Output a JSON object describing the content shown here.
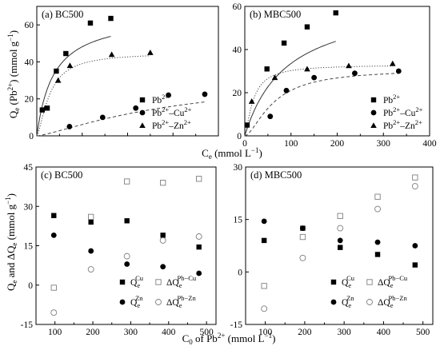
{
  "chart_data": [
    {
      "type": "scatter",
      "panel_label": "(a) BC500",
      "ylabel": "Qe (Pb2+) (mmol g-1)",
      "ylabel_parts": {
        "base": "Q",
        "base_sub": "e",
        "open": " (Pb",
        "sup": "2+",
        "close": ") (mmol g",
        "unit_sup": "−1",
        "end": ")"
      },
      "xlim": [
        0,
        400
      ],
      "ylim": [
        0,
        70
      ],
      "xticks": [
        0,
        100,
        200,
        300,
        400
      ],
      "yticks": [
        0,
        20,
        40,
        60
      ],
      "xtick_labels": [
        "",
        "",
        "",
        "",
        ""
      ],
      "ytick_labels": [
        "0",
        "20",
        "40",
        "60"
      ],
      "legend_position": "bottom-right",
      "series": [
        {
          "name": "Pb2+",
          "legend_parts": [
            "Pb",
            "2+",
            ""
          ],
          "marker": "square",
          "fit": "solid",
          "fit_model": {
            "qmax": 66,
            "k": 0.027,
            "n": 1
          },
          "x": [
            12,
            23,
            43,
            64,
            118,
            163
          ],
          "y": [
            14,
            15,
            35,
            44.5,
            61,
            63.5
          ]
        },
        {
          "name": "Pb2+–Cu2+",
          "legend_parts": [
            "Pb",
            "2+",
            "–Cu",
            "2+"
          ],
          "marker": "circle",
          "fit": "dashed",
          "fit_model": {
            "qmax": 33,
            "k": 0.0032,
            "n": 1.3
          },
          "x": [
            72,
            145,
            218,
            290,
            370
          ],
          "y": [
            5,
            10,
            15,
            22,
            22.5
          ]
        },
        {
          "name": "Pb2+–Zn2+",
          "legend_parts": [
            "Pb",
            "2+",
            "–Zn",
            "2+"
          ],
          "marker": "triangle",
          "fit": "dotted",
          "fit_model": {
            "qmax": 45,
            "k": 0.035,
            "n": 1.5
          },
          "x": [
            18,
            47,
            73,
            165,
            250
          ],
          "y": [
            15,
            30,
            38,
            44,
            45
          ]
        }
      ]
    },
    {
      "type": "scatter",
      "panel_label": "(b) MBC500",
      "xlim": [
        0,
        400
      ],
      "ylim": [
        0,
        60
      ],
      "xticks": [
        0,
        100,
        200,
        300,
        400
      ],
      "yticks": [
        0,
        20,
        40,
        60
      ],
      "xtick_labels": [
        "0",
        "100",
        "200",
        "300",
        "400"
      ],
      "ytick_labels": [
        "0",
        "20",
        "40",
        "60"
      ],
      "legend_position": "bottom-right",
      "series": [
        {
          "name": "Pb2+",
          "legend_parts": [
            "Pb",
            "2+",
            ""
          ],
          "marker": "square",
          "fit": "solid",
          "fit_model": {
            "qmax": 64,
            "k": 0.011,
            "n": 1
          },
          "x": [
            5,
            48,
            85,
            135,
            197
          ],
          "y": [
            5,
            31,
            43,
            50.5,
            57
          ]
        },
        {
          "name": "Pb2+–Cu2+",
          "legend_parts": [
            "Pb",
            "2+",
            "–Cu",
            "2+"
          ],
          "marker": "circle",
          "fit": "dashed",
          "fit_model": {
            "qmax": 31,
            "k": 0.016,
            "n": 1.6
          },
          "x": [
            55,
            90,
            150,
            238,
            333
          ],
          "y": [
            9,
            21,
            27,
            29,
            30
          ]
        },
        {
          "name": "Pb2+–Zn2+",
          "legend_parts": [
            "Pb",
            "2+",
            "–Zn",
            "2+"
          ],
          "marker": "triangle",
          "fit": "dotted",
          "fit_model": {
            "qmax": 33,
            "k": 0.055,
            "n": 1.4
          },
          "x": [
            15,
            65,
            135,
            225,
            320
          ],
          "y": [
            16,
            27,
            31,
            32.5,
            33.5
          ]
        }
      ]
    },
    {
      "type": "scatter",
      "panel_label": "(c) BC500",
      "ylabel": "Qe and ΔQe (mmol g-1)",
      "ylabel_parts": {
        "base": "Q",
        "base_sub": "e",
        "mid": " and ΔQ",
        "mid_sub": "e",
        "close": " (mmol g",
        "unit_sup": "−1",
        "end": ")"
      },
      "xlim": [
        50,
        525
      ],
      "ylim": [
        -15,
        45
      ],
      "xticks": [
        100,
        200,
        300,
        400,
        500
      ],
      "yticks": [
        -15,
        0,
        15,
        30,
        45
      ],
      "xtick_labels": [
        "100",
        "200",
        "300",
        "400",
        "500"
      ],
      "ytick_labels": [
        "-15",
        "0",
        "15",
        "30",
        "45"
      ],
      "legend_position": "bottom-right",
      "series": [
        {
          "name": "QeCu",
          "legend_parts": [
            "Q",
            "e",
            "Cu"
          ],
          "marker": "square",
          "x": [
            97,
            195,
            290,
            385,
            480
          ],
          "y": [
            26.5,
            24,
            24.5,
            19,
            14.5
          ]
        },
        {
          "name": "QeZn",
          "legend_parts": [
            "Q",
            "e",
            "Zn"
          ],
          "marker": "circle",
          "x": [
            97,
            195,
            290,
            385,
            480
          ],
          "y": [
            19,
            13,
            8,
            7,
            4.5
          ]
        },
        {
          "name": "ΔQePb−Cu",
          "legend_parts": [
            "ΔQ",
            "e",
            "Pb−Cu"
          ],
          "marker": "open-square",
          "x": [
            97,
            195,
            290,
            385,
            480
          ],
          "y": [
            -1,
            26,
            39.5,
            39,
            40.5
          ]
        },
        {
          "name": "ΔQePb−Zn",
          "legend_parts": [
            "ΔQ",
            "e",
            "Pb−Zn"
          ],
          "marker": "open-circle",
          "x": [
            97,
            195,
            290,
            385,
            480
          ],
          "y": [
            -10.5,
            6,
            11,
            17,
            18.5
          ]
        }
      ]
    },
    {
      "type": "scatter",
      "panel_label": "(d) MBC500",
      "xlim": [
        50,
        525
      ],
      "ylim": [
        -15,
        30
      ],
      "xticks": [
        100,
        200,
        300,
        400,
        500
      ],
      "yticks": [
        -15,
        0,
        15,
        30
      ],
      "xtick_labels": [
        "100",
        "200",
        "300",
        "400",
        "500"
      ],
      "ytick_labels": [
        "-15",
        "0",
        "15",
        "30"
      ],
      "legend_position": "bottom-right",
      "series": [
        {
          "name": "QeCu",
          "legend_parts": [
            "Q",
            "e",
            "Cu"
          ],
          "marker": "square",
          "x": [
            97,
            195,
            290,
            385,
            480
          ],
          "y": [
            9,
            12.5,
            7,
            5,
            2
          ]
        },
        {
          "name": "QeZn",
          "legend_parts": [
            "Q",
            "e",
            "Zn"
          ],
          "marker": "circle",
          "x": [
            97,
            195,
            290,
            385,
            480
          ],
          "y": [
            14.5,
            12.5,
            9,
            8.5,
            7.5
          ]
        },
        {
          "name": "ΔQePb−Cu",
          "legend_parts": [
            "ΔQ",
            "e",
            "Pb−Cu"
          ],
          "marker": "open-square",
          "x": [
            97,
            195,
            290,
            385,
            480
          ],
          "y": [
            -4,
            10,
            16,
            21.5,
            27
          ]
        },
        {
          "name": "ΔQePb−Zn",
          "legend_parts": [
            "ΔQ",
            "e",
            "Pb−Zn"
          ],
          "marker": "open-circle",
          "x": [
            97,
            195,
            290,
            385,
            480
          ],
          "y": [
            -10.5,
            4,
            12.5,
            18,
            24.5
          ]
        }
      ]
    }
  ],
  "shared_labels": {
    "xlabel_top": {
      "base": "C",
      "sub": "e",
      "rest": " (mmol L",
      "sup": "−1",
      "end": ")"
    },
    "xlabel_bottom": {
      "base": "C",
      "sub": "0",
      "rest": " of Pb",
      "sup": "2+",
      "rest2": " (mmol L",
      "sup2": "−1",
      "end": ")"
    }
  }
}
